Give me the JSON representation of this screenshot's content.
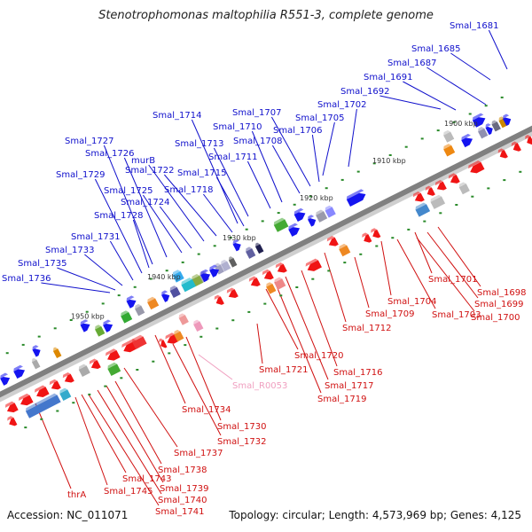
{
  "title": "Stenotrophomonas maltophilia R551-3, complete genome",
  "accession": "Accession: NC_011071",
  "topology": "Topology: circular; Length: 4,573,969 bp; Genes: 4,125",
  "kbp_ticks": [
    {
      "label": "1900 kbp",
      "pos": 1900
    },
    {
      "label": "1910 kbp",
      "pos": 1910
    },
    {
      "label": "1920 kbp",
      "pos": 1920
    },
    {
      "label": "1930 kbp",
      "pos": 1930
    },
    {
      "label": "1940 kbp",
      "pos": 1940
    },
    {
      "label": "1950 kbp",
      "pos": 1950
    }
  ],
  "colors": {
    "forward_label": "#1010cc",
    "reverse_label": "#d01010",
    "rna_label": "#f0a0c0",
    "forward_gene": "#1414f0",
    "reverse_gene": "#f01414",
    "backbone": "#808080"
  },
  "forward_labels": [
    "Smal_1681",
    "Smal_1685",
    "Smal_1687",
    "Smal_1691",
    "Smal_1692",
    "Smal_1702",
    "Smal_1705",
    "Smal_1706",
    "Smal_1707",
    "Smal_1708",
    "Smal_1710",
    "Smal_1711",
    "Smal_1713",
    "Smal_1714",
    "Smal_1715",
    "Smal_1718",
    "Smal_1722",
    "murB",
    "Smal_1724",
    "Smal_1725",
    "Smal_1726",
    "Smal_1727",
    "Smal_1728",
    "Smal_1729",
    "Smal_1731",
    "Smal_1733",
    "Smal_1735",
    "Smal_1736"
  ],
  "reverse_labels": [
    "Smal_1698",
    "Smal_1699",
    "Smal_1700",
    "Smal_1701",
    "Smal_1703",
    "Smal_1704",
    "Smal_1709",
    "Smal_1712",
    "Smal_1716",
    "Smal_1717",
    "Smal_1719",
    "Smal_1720",
    "Smal_1721",
    "Smal_1730",
    "Smal_1732",
    "Smal_1734",
    "Smal_1737",
    "Smal_1738",
    "Smal_1739",
    "Smal_1740",
    "Smal_1741",
    "Smal_1743",
    "Smal_1745",
    "thrA"
  ],
  "rna_labels": [
    "Smal_R0053"
  ]
}
